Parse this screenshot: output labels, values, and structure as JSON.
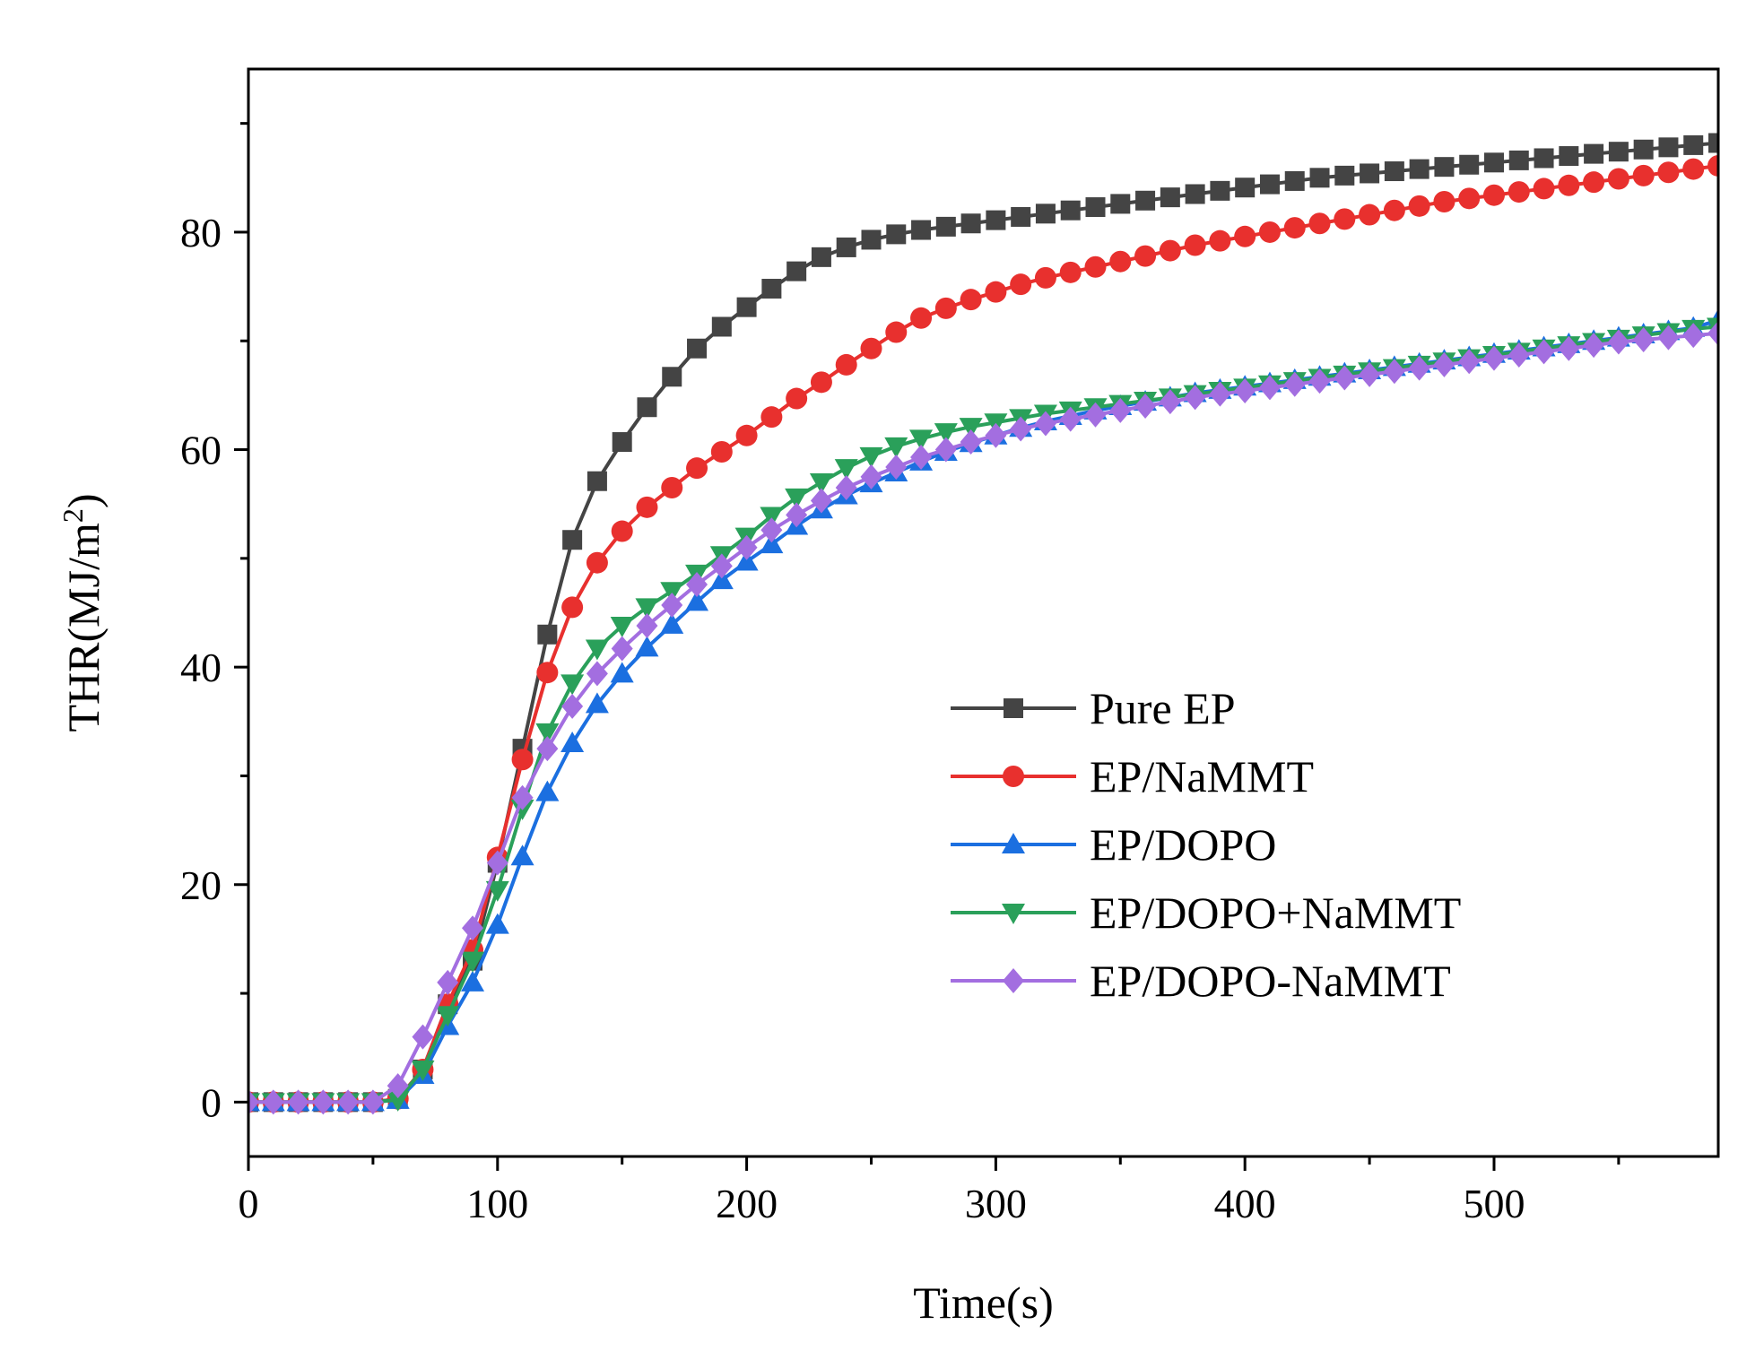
{
  "chart_data": {
    "type": "line",
    "title": "",
    "xlabel": "Time(s)",
    "ylabel": "THR(MJ/m2)",
    "ylabel_main": "THR(MJ/m",
    "ylabel_sup": "2",
    "ylabel_close": ")",
    "xlim": [
      0,
      590
    ],
    "ylim": [
      -5,
      95
    ],
    "xticks": [
      0,
      100,
      200,
      300,
      400,
      500
    ],
    "xtick_labels": [
      "0",
      "100",
      "200",
      "300",
      "400",
      "500"
    ],
    "yticks": [
      0,
      20,
      40,
      60,
      80
    ],
    "ytick_labels": [
      "0",
      "20",
      "40",
      "60",
      "80"
    ],
    "legend_position": "center-right",
    "x": [
      0,
      10,
      20,
      30,
      40,
      50,
      60,
      70,
      80,
      90,
      100,
      110,
      120,
      130,
      140,
      150,
      160,
      170,
      180,
      190,
      200,
      210,
      220,
      230,
      240,
      250,
      260,
      270,
      280,
      290,
      300,
      310,
      320,
      330,
      340,
      350,
      360,
      370,
      380,
      390,
      400,
      410,
      420,
      430,
      440,
      450,
      460,
      470,
      480,
      490,
      500,
      510,
      520,
      530,
      540,
      550,
      560,
      570,
      580,
      590
    ],
    "series": [
      {
        "name": "Pure EP",
        "color": "#444444",
        "marker": "square",
        "values": [
          0,
          0,
          0,
          0,
          0,
          0,
          0.3,
          3,
          9,
          13,
          22,
          32.5,
          43,
          51.7,
          57.1,
          60.7,
          63.9,
          66.7,
          69.3,
          71.3,
          73.1,
          74.8,
          76.4,
          77.7,
          78.6,
          79.3,
          79.8,
          80.2,
          80.5,
          80.8,
          81.1,
          81.4,
          81.7,
          82,
          82.3,
          82.6,
          82.9,
          83.2,
          83.5,
          83.8,
          84.1,
          84.4,
          84.7,
          85,
          85.2,
          85.4,
          85.6,
          85.8,
          86,
          86.2,
          86.4,
          86.6,
          86.8,
          87,
          87.2,
          87.4,
          87.6,
          87.8,
          88,
          88.2
        ]
      },
      {
        "name": "EP/NaMMT",
        "color": "#e8302e",
        "marker": "circle",
        "values": [
          0,
          0,
          0,
          0,
          0,
          0,
          0.3,
          3,
          9,
          14,
          22.5,
          31.5,
          39.5,
          45.5,
          49.6,
          52.5,
          54.7,
          56.5,
          58.3,
          59.8,
          61.3,
          63,
          64.7,
          66.2,
          67.8,
          69.3,
          70.8,
          72.1,
          73,
          73.8,
          74.5,
          75.2,
          75.8,
          76.3,
          76.8,
          77.3,
          77.8,
          78.3,
          78.8,
          79.2,
          79.6,
          80,
          80.4,
          80.8,
          81.2,
          81.6,
          82,
          82.4,
          82.8,
          83.1,
          83.4,
          83.7,
          84,
          84.3,
          84.6,
          84.9,
          85.2,
          85.5,
          85.8,
          86.1
        ]
      },
      {
        "name": "EP/DOPO",
        "color": "#1b6fe0",
        "marker": "triangle-up",
        "values": [
          0,
          0,
          0,
          0,
          0,
          0,
          0.2,
          2.5,
          7,
          11,
          16.3,
          22.6,
          28.5,
          33,
          36.6,
          39.4,
          41.8,
          43.9,
          46,
          48,
          49.7,
          51.3,
          53,
          54.5,
          55.8,
          56.9,
          57.9,
          58.9,
          59.8,
          60.6,
          61.3,
          62,
          62.6,
          63.1,
          63.6,
          64,
          64.4,
          64.8,
          65.2,
          65.5,
          65.8,
          66.1,
          66.4,
          66.7,
          67,
          67.3,
          67.6,
          67.9,
          68.2,
          68.5,
          68.8,
          69.1,
          69.4,
          69.7,
          70,
          70.3,
          70.6,
          70.9,
          71.2,
          71.9
        ]
      },
      {
        "name": "EP/DOPO+NaMMT",
        "color": "#2aa05a",
        "marker": "triangle-down",
        "values": [
          0,
          0,
          0,
          0,
          0,
          0,
          0.2,
          3,
          8,
          13,
          19.5,
          27,
          34,
          38.5,
          41.7,
          43.8,
          45.5,
          47,
          48.6,
          50.3,
          52,
          53.9,
          55.6,
          57,
          58.3,
          59.4,
          60.3,
          61,
          61.6,
          62.1,
          62.5,
          62.9,
          63.3,
          63.6,
          63.9,
          64.2,
          64.5,
          64.8,
          65.1,
          65.4,
          65.7,
          66,
          66.3,
          66.6,
          66.9,
          67.2,
          67.5,
          67.8,
          68.1,
          68.4,
          68.7,
          69,
          69.3,
          69.6,
          69.9,
          70.2,
          70.5,
          70.8,
          71.1,
          71.3
        ]
      },
      {
        "name": "EP/DOPO-NaMMT",
        "color": "#a36ee0",
        "marker": "diamond",
        "values": [
          0,
          0,
          0,
          0,
          0,
          0,
          1.5,
          6,
          11,
          16,
          22,
          28,
          32.5,
          36.4,
          39.4,
          41.7,
          43.8,
          45.7,
          47.6,
          49.3,
          51,
          52.6,
          54,
          55.3,
          56.5,
          57.5,
          58.4,
          59.3,
          60,
          60.7,
          61.3,
          61.9,
          62.4,
          62.8,
          63.2,
          63.6,
          64,
          64.4,
          64.8,
          65.1,
          65.4,
          65.7,
          66,
          66.3,
          66.6,
          66.9,
          67.2,
          67.5,
          67.8,
          68.1,
          68.4,
          68.7,
          69,
          69.3,
          69.6,
          69.9,
          70.1,
          70.3,
          70.5,
          70.7
        ]
      }
    ]
  }
}
